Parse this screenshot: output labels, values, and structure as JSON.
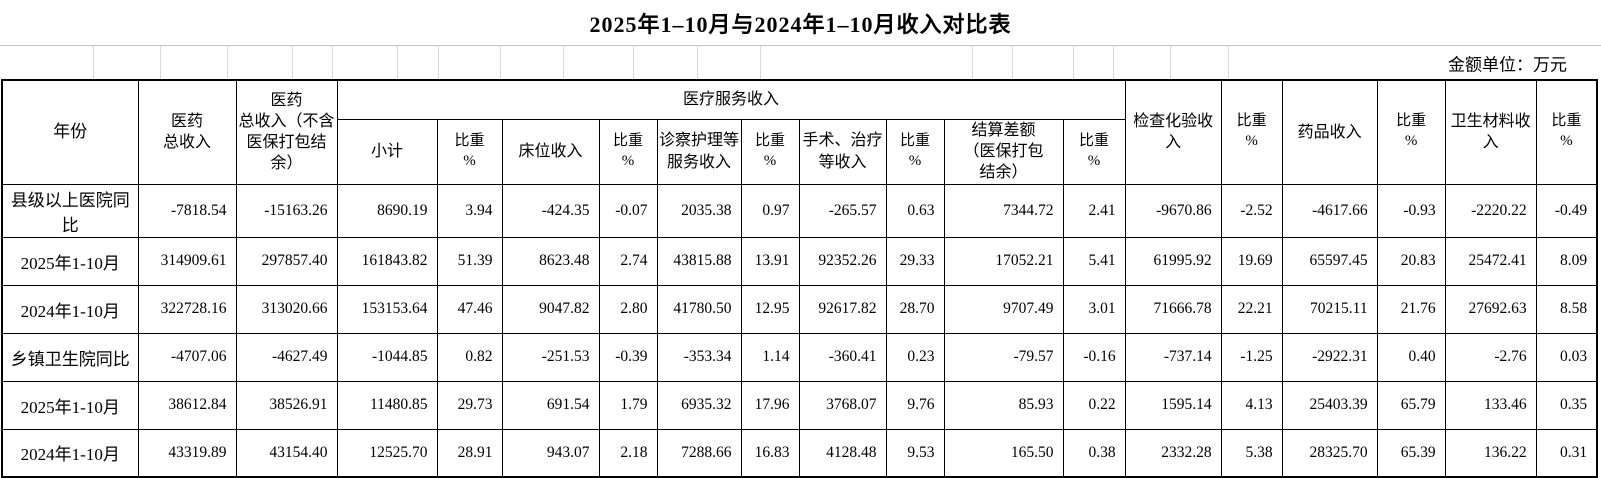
{
  "title": "2025年1–10月与2024年1–10月收入对比表",
  "unit_label": "金额单位：万元",
  "table": {
    "header": {
      "year": "年份",
      "total_revenue": "医药\n总收入",
      "total_revenue_excl": "医药\n总收入（不含\n医保打包结\n余）",
      "medical_service_group": "医疗服务收入",
      "subtotal": "小计",
      "proportion": "比重\n%",
      "bed_income": "床位收入",
      "exam_care_income": "诊察护理等\n服务收入",
      "surgery_income": "手术、治疗\n等收入",
      "settlement_diff": "结算差额\n（医保打包\n结余）",
      "inspection_income": "检查化验收\n入",
      "drug_income": "药品收入",
      "material_income": "卫生材料收\n入"
    },
    "rows": [
      {
        "label": "县级以上医院同比",
        "values": [
          "-7818.54",
          "-15163.26",
          "8690.19",
          "3.94",
          "-424.35",
          "-0.07",
          "2035.38",
          "0.97",
          "-265.57",
          "0.63",
          "7344.72",
          "2.41",
          "-9670.86",
          "-2.52",
          "-4617.66",
          "-0.93",
          "-2220.22",
          "-0.49"
        ]
      },
      {
        "label": "2025年1-10月",
        "values": [
          "314909.61",
          "297857.40",
          "161843.82",
          "51.39",
          "8623.48",
          "2.74",
          "43815.88",
          "13.91",
          "92352.26",
          "29.33",
          "17052.21",
          "5.41",
          "61995.92",
          "19.69",
          "65597.45",
          "20.83",
          "25472.41",
          "8.09"
        ]
      },
      {
        "label": "2024年1-10月",
        "values": [
          "322728.16",
          "313020.66",
          "153153.64",
          "47.46",
          "9047.82",
          "2.80",
          "41780.50",
          "12.95",
          "92617.82",
          "28.70",
          "9707.49",
          "3.01",
          "71666.78",
          "22.21",
          "70215.11",
          "21.76",
          "27692.63",
          "8.58"
        ]
      },
      {
        "label": "乡镇卫生院同比",
        "values": [
          "-4707.06",
          "-4627.49",
          "-1044.85",
          "0.82",
          "-251.53",
          "-0.39",
          "-353.34",
          "1.14",
          "-360.41",
          "0.23",
          "-79.57",
          "-0.16",
          "-737.14",
          "-1.25",
          "-2922.31",
          "0.40",
          "-2.76",
          "0.03"
        ]
      },
      {
        "label": "2025年1-10月",
        "values": [
          "38612.84",
          "38526.91",
          "11480.85",
          "29.73",
          "691.54",
          "1.79",
          "6935.32",
          "17.96",
          "3768.07",
          "9.76",
          "85.93",
          "0.22",
          "1595.14",
          "4.13",
          "25403.39",
          "65.79",
          "133.46",
          "0.35"
        ]
      },
      {
        "label": "2024年1-10月",
        "values": [
          "43319.89",
          "43154.40",
          "12525.70",
          "28.91",
          "943.07",
          "2.18",
          "7288.66",
          "16.83",
          "4128.48",
          "9.53",
          "165.50",
          "0.38",
          "2332.28",
          "5.38",
          "28325.70",
          "65.39",
          "136.22",
          "0.31"
        ]
      }
    ]
  }
}
